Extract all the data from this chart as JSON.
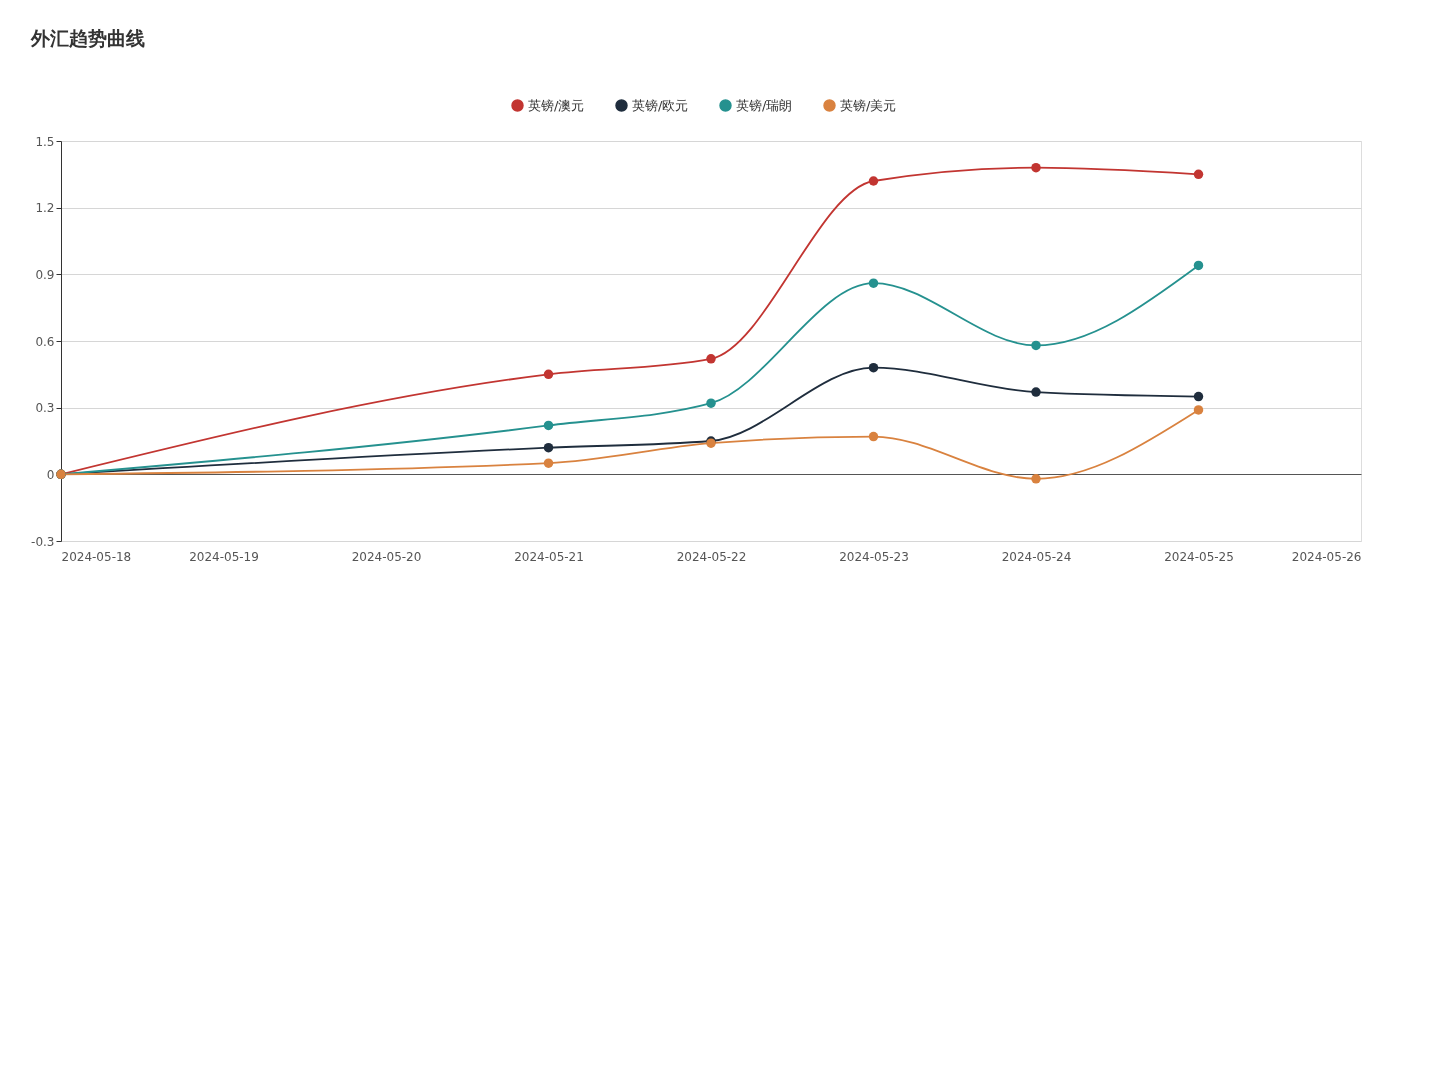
{
  "chart_data": {
    "type": "line",
    "title": "外汇趋势曲线",
    "x": [
      "2024-05-18",
      "2024-05-21",
      "2024-05-22",
      "2024-05-23",
      "2024-05-24",
      "2024-05-25"
    ],
    "series": [
      {
        "name": "英镑/澳元",
        "color": "#c23531",
        "values": [
          0,
          0.45,
          0.52,
          1.32,
          1.38,
          1.35
        ]
      },
      {
        "name": "英镑/欧元",
        "color": "#1f2d3d",
        "values": [
          0,
          0.12,
          0.15,
          0.48,
          0.37,
          0.35
        ]
      },
      {
        "name": "英镑/瑞朗",
        "color": "#25918f",
        "values": [
          0,
          0.22,
          0.32,
          0.86,
          0.58,
          0.94
        ]
      },
      {
        "name": "英镑/美元",
        "color": "#d9823f",
        "values": [
          0,
          0.05,
          0.14,
          0.17,
          -0.02,
          0.29
        ]
      }
    ],
    "xlim": [
      "2024-05-18",
      "2024-05-26"
    ],
    "xticks": [
      "2024-05-18",
      "2024-05-19",
      "2024-05-20",
      "2024-05-21",
      "2024-05-22",
      "2024-05-23",
      "2024-05-24",
      "2024-05-25",
      "2024-05-26"
    ],
    "ylim": [
      -0.3,
      1.5
    ],
    "yticks": [
      -0.3,
      0,
      0.3,
      0.6,
      0.9,
      1.2,
      1.5
    ],
    "grid": "y",
    "legend": "top",
    "marker": "circle",
    "line_style": "solid"
  }
}
